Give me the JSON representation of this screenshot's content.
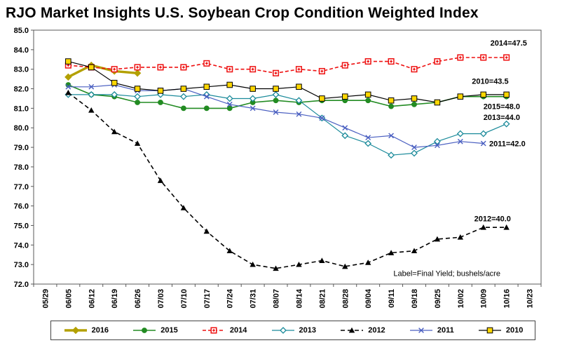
{
  "chart_data": {
    "type": "line",
    "title": "RJO Market Insights U.S. Soybean Crop Condition Weighted Index",
    "xlabel": "",
    "ylabel": "",
    "ylim": [
      72,
      85
    ],
    "grid": false,
    "legend_position": "bottom",
    "y_ticks": [
      "72.0",
      "73.0",
      "74.0",
      "75.0",
      "76.0",
      "77.0",
      "78.0",
      "79.0",
      "80.0",
      "81.0",
      "82.0",
      "83.0",
      "84.0",
      "85.0"
    ],
    "categories": [
      "05/29",
      "06/05",
      "06/12",
      "06/19",
      "06/26",
      "07/03",
      "07/10",
      "07/17",
      "07/24",
      "07/31",
      "08/07",
      "08/14",
      "08/21",
      "08/28",
      "09/04",
      "09/11",
      "09/18",
      "09/25",
      "10/02",
      "10/09",
      "10/16",
      "10/23"
    ],
    "series": [
      {
        "name": "2016",
        "color": "#b3a000",
        "marker": "diamond-filled",
        "width": 3.4,
        "dash": null,
        "values": [
          null,
          82.6,
          83.2,
          82.9,
          82.8,
          null,
          null,
          null,
          null,
          null,
          null,
          null,
          null,
          null,
          null,
          null,
          null,
          null,
          null,
          null,
          null,
          null
        ]
      },
      {
        "name": "2015",
        "color": "#228b22",
        "marker": "circle-filled",
        "width": 1.6,
        "dash": null,
        "values": [
          null,
          82.2,
          81.7,
          81.6,
          81.3,
          81.3,
          81.0,
          81.0,
          81.0,
          81.3,
          81.4,
          81.3,
          81.4,
          81.4,
          81.4,
          81.1,
          81.2,
          81.3,
          81.6,
          81.6,
          81.6,
          null
        ]
      },
      {
        "name": "2014",
        "color": "#ee1111",
        "marker": "square-dot",
        "width": 1.6,
        "dash": "5,3",
        "values": [
          null,
          83.2,
          83.1,
          83.0,
          83.1,
          83.1,
          83.1,
          83.3,
          83.0,
          83.0,
          82.8,
          83.0,
          82.9,
          83.2,
          83.4,
          83.4,
          83.0,
          83.4,
          83.6,
          83.6,
          83.6,
          null
        ]
      },
      {
        "name": "2013",
        "color": "#1a8a9a",
        "marker": "diamond-open",
        "width": 1.2,
        "dash": null,
        "values": [
          null,
          81.7,
          81.7,
          81.7,
          81.6,
          81.7,
          81.6,
          81.7,
          81.5,
          81.5,
          81.7,
          81.4,
          80.5,
          79.6,
          79.2,
          78.6,
          78.7,
          79.3,
          79.7,
          79.7,
          80.2,
          null
        ]
      },
      {
        "name": "2012",
        "color": "#000000",
        "marker": "triangle-filled",
        "width": 1.6,
        "dash": "6,4",
        "values": [
          null,
          81.8,
          80.9,
          79.8,
          79.2,
          77.3,
          75.9,
          74.7,
          73.7,
          73.0,
          72.8,
          73.0,
          73.2,
          72.9,
          73.1,
          73.6,
          73.7,
          74.3,
          74.4,
          74.9,
          74.9,
          null
        ]
      },
      {
        "name": "2011",
        "color": "#4a5fc1",
        "marker": "x-cross",
        "width": 1.2,
        "dash": null,
        "values": [
          null,
          82.1,
          82.1,
          82.2,
          81.9,
          81.9,
          82.0,
          81.6,
          81.2,
          81.0,
          80.8,
          80.7,
          80.5,
          80.0,
          79.5,
          79.6,
          79.0,
          79.1,
          79.3,
          79.2,
          null,
          null
        ]
      },
      {
        "name": "2010",
        "color": "#000000",
        "marker_fill": "#ffd700",
        "marker": "square-filled",
        "width": 1.2,
        "dash": null,
        "values": [
          null,
          83.4,
          83.1,
          82.3,
          82.0,
          81.9,
          82.0,
          82.1,
          82.2,
          82.0,
          82.0,
          82.1,
          81.5,
          81.6,
          81.7,
          81.4,
          81.5,
          81.3,
          81.6,
          81.7,
          81.7,
          null
        ]
      }
    ],
    "annotations": [
      {
        "text": "2014=47.5",
        "xi": 19.3,
        "y": 84.35,
        "weight": "bold"
      },
      {
        "text": "2010=43.5",
        "xi": 18.5,
        "y": 82.4,
        "weight": "bold"
      },
      {
        "text": "2015=48.0",
        "xi": 19.0,
        "y": 81.1,
        "weight": "bold"
      },
      {
        "text": "2013=44.0",
        "xi": 19.0,
        "y": 80.55,
        "weight": "bold"
      },
      {
        "text": "2011=42.0",
        "xi": 19.25,
        "y": 79.2,
        "weight": "bold"
      },
      {
        "text": "2012=40.0",
        "xi": 18.6,
        "y": 75.35,
        "weight": "bold"
      },
      {
        "text": "Label=Final Yield; bushels/acre",
        "xi": 15.1,
        "y": 72.55,
        "weight": "normal"
      }
    ]
  }
}
